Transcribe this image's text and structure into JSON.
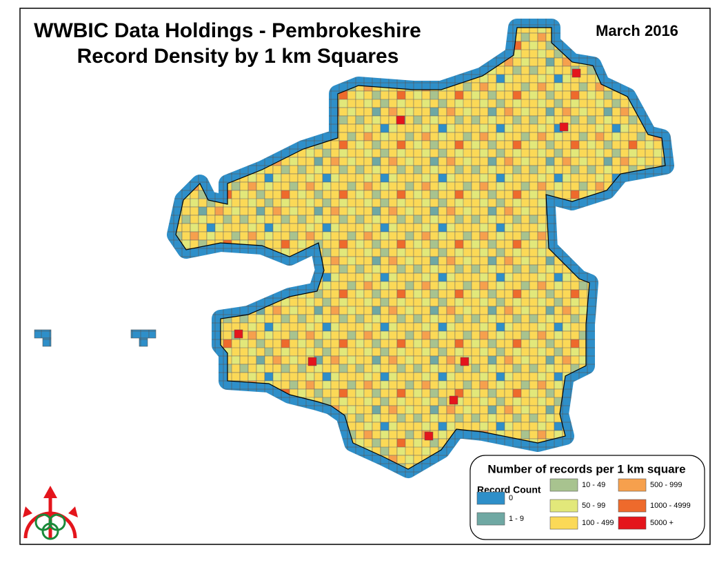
{
  "map": {
    "title": [
      "WWBIC Data Holdings - Pembrokeshire",
      "Record Density by 1 km Squares"
    ],
    "date": "March 2016",
    "legend": {
      "title": "Number of records per 1 km square",
      "heading": "Record Count",
      "items": [
        {
          "label": "0",
          "color": "#2e8fc9"
        },
        {
          "label": "1 - 9",
          "color": "#6fa8a3"
        },
        {
          "label": "10 - 49",
          "color": "#a8c38f"
        },
        {
          "label": "50 - 99",
          "color": "#e2e87a"
        },
        {
          "label": "100 - 499",
          "color": "#fbd957"
        },
        {
          "label": "500 - 999",
          "color": "#f6a04d"
        },
        {
          "label": "1000 - 4999",
          "color": "#ee6a2c"
        },
        {
          "label": "5000 +",
          "color": "#e4151c"
        }
      ]
    }
  }
}
